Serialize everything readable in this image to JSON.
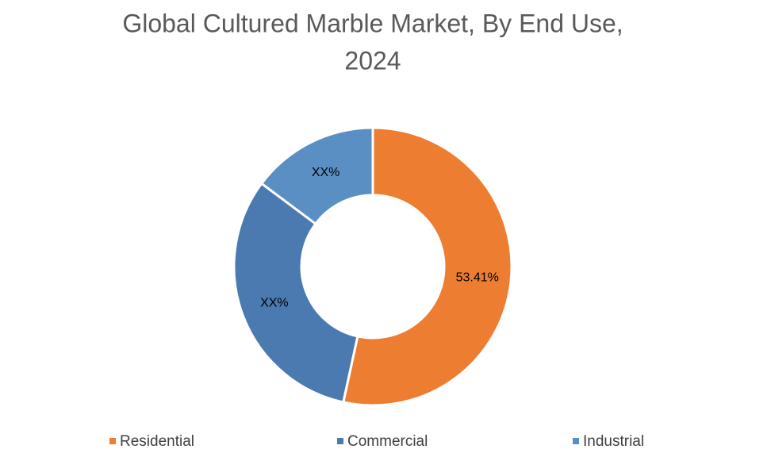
{
  "chart_data": {
    "type": "donut",
    "title": [
      "Global Cultured Marble Market, By End Use,",
      "2024"
    ],
    "categories": [
      "Residential",
      "Commercial",
      "Industrial"
    ],
    "values": [
      53.41,
      31.8,
      14.79
    ],
    "value_labels": [
      "53.41%",
      "XX%",
      "XX%"
    ],
    "colors": [
      "#ed7d31",
      "#4a7ab0",
      "#5a8fc3"
    ],
    "legend": "bottom"
  }
}
